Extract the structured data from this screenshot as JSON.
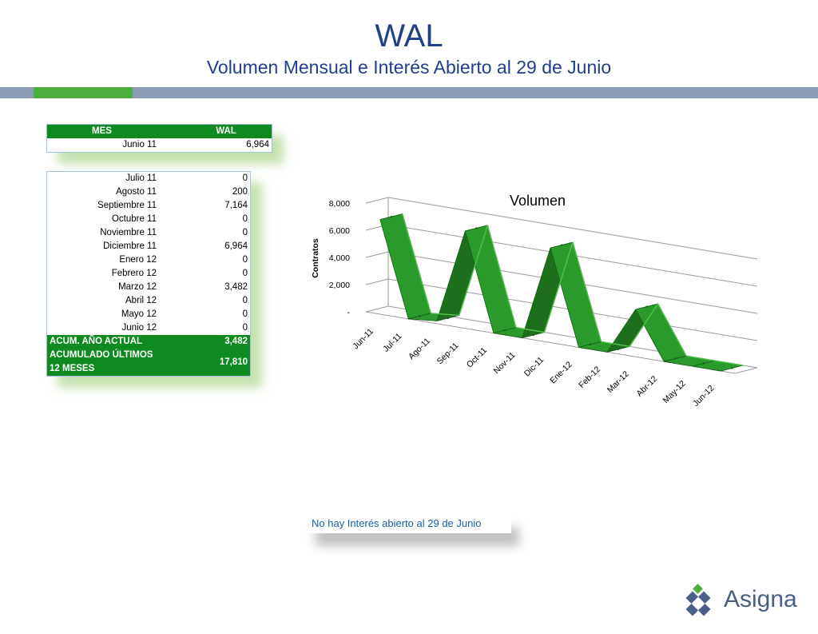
{
  "header": {
    "title": "WAL",
    "subtitle": "Volumen Mensual e Interés Abierto al 29 de Junio"
  },
  "table_top": {
    "col_mes": "MES",
    "col_wal": "WAL",
    "rows": [
      {
        "mes": "Junio 11",
        "wal": "6,964"
      }
    ]
  },
  "table_months": {
    "rows": [
      {
        "mes": "Julio 11",
        "wal": "0"
      },
      {
        "mes": "Agosto 11",
        "wal": "200"
      },
      {
        "mes": "Septiembre 11",
        "wal": "7,164"
      },
      {
        "mes": "Octubre 11",
        "wal": "0"
      },
      {
        "mes": "Noviembre 11",
        "wal": "0"
      },
      {
        "mes": "Diciembre 11",
        "wal": "6,964"
      },
      {
        "mes": "Enero 12",
        "wal": "0"
      },
      {
        "mes": "Febrero 12",
        "wal": "0"
      },
      {
        "mes": "Marzo 12",
        "wal": "3,482"
      },
      {
        "mes": "Abril 12",
        "wal": "0"
      },
      {
        "mes": "Mayo 12",
        "wal": "0"
      },
      {
        "mes": "Junio 12",
        "wal": "0"
      }
    ],
    "totals": [
      {
        "label": "ACUM. AÑO ACTUAL",
        "value": "3,482"
      },
      {
        "label": "ACUMULADO ÚLTIMOS 12 MESES",
        "value": "17,810"
      }
    ]
  },
  "chart_data": {
    "type": "line",
    "title": "Volumen",
    "xlabel": "",
    "ylabel": "Contratos",
    "categories": [
      "Jun-11",
      "Jul-11",
      "Ago-11",
      "Sep-11",
      "Oct-11",
      "Nov-11",
      "Dic-11",
      "Ene-12",
      "Feb-12",
      "Mar-12",
      "Abr-12",
      "May-12",
      "Jun-12"
    ],
    "series": [
      {
        "values": [
          6964,
          0,
          200,
          7164,
          0,
          0,
          6964,
          0,
          0,
          3482,
          0,
          0,
          0
        ]
      }
    ],
    "y_ticks": [
      "-",
      "2,000",
      "4,000",
      "6,000",
      "8,000"
    ],
    "ylim": [
      0,
      8000
    ],
    "grid": true,
    "legend": "none",
    "style": "3d-ribbon",
    "color": "#1e8a22"
  },
  "note": {
    "text": "No hay Interés abierto al 29 de Junio"
  },
  "brand": {
    "logo_text": "Asigna",
    "accent": "#4cae3c",
    "navy": "#1f3f8a"
  }
}
